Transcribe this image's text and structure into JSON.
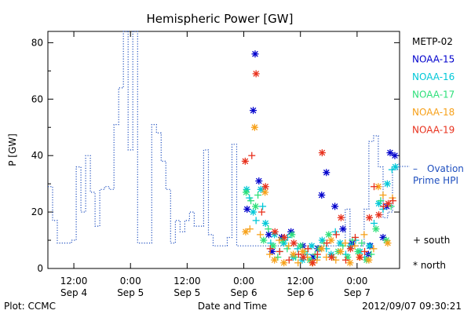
{
  "chart_data": {
    "type": "scatter",
    "title": "Hemispheric Power [GW]",
    "ylabel": "P [GW]",
    "xlabel": "Date and Time",
    "ylim": [
      0,
      84
    ],
    "yticks": [
      0,
      20,
      40,
      60,
      80
    ],
    "x_unit": "hours from 2012-09-04 00:00 UTC",
    "xlim": [
      6.5,
      81
    ],
    "xticks": [
      {
        "x": 12,
        "time": "12:00",
        "date": "Sep 4"
      },
      {
        "x": 24,
        "time": "0:00",
        "date": "Sep 5"
      },
      {
        "x": 36,
        "time": "12:00",
        "date": "Sep 5"
      },
      {
        "x": 48,
        "time": "0:00",
        "date": "Sep 6"
      },
      {
        "x": 60,
        "time": "12:00",
        "date": "Sep 6"
      },
      {
        "x": 72,
        "time": "0:00",
        "date": "Sep 7"
      }
    ],
    "ovation": {
      "name_line1": "Ovation",
      "name_line2": "Prime HPI",
      "color": "#1f4fbf",
      "x": [
        6.5,
        7.5,
        8.5,
        9.5,
        10.5,
        11.5,
        12.5,
        13.5,
        14.5,
        15.5,
        16.5,
        17.5,
        18.5,
        19.5,
        20.5,
        21.5,
        22.5,
        23.5,
        24.5,
        25.5,
        26.5,
        27.5,
        28.5,
        29.5,
        30.5,
        31.5,
        32.5,
        33.5,
        34.5,
        35.5,
        36.5,
        37.5,
        38.5,
        39.5,
        40.5,
        41.5,
        42.5,
        43.5,
        44.5,
        45.5,
        46.5,
        47.5,
        48.5,
        49.5,
        50.5,
        51.5,
        52.5,
        53.5,
        54.5,
        55.5,
        56.5,
        57.5,
        58.5,
        59.5,
        60.5,
        61.5,
        62.5,
        63.5,
        64.5,
        65.5,
        66.5,
        67.5,
        68.5,
        69.5,
        70.5,
        71.5,
        72.5,
        73.5,
        74.5,
        75.5,
        76.5,
        77.5,
        78.5,
        79.5,
        80.5,
        81
      ],
      "y": [
        29,
        17,
        9,
        9,
        9,
        10,
        36,
        20,
        40,
        27,
        15,
        28,
        29,
        28,
        51,
        64,
        84,
        42,
        84,
        9,
        9,
        9,
        51,
        48,
        38,
        28,
        9,
        17,
        13,
        17,
        20,
        15,
        15,
        42,
        12,
        8,
        8,
        8,
        11,
        44,
        8,
        8,
        8,
        8,
        8,
        8,
        8,
        8,
        8,
        8,
        8,
        8,
        8,
        8,
        8,
        8,
        8,
        8,
        8,
        8,
        8,
        8,
        8,
        21,
        8,
        8,
        8,
        21,
        45,
        47,
        36,
        18,
        20,
        35,
        37,
        35
      ]
    },
    "series": [
      {
        "name": "METP-02",
        "color": "#000000",
        "marker": "+",
        "x": [],
        "y": []
      },
      {
        "name": "NOAA-15",
        "color": "#0000cc",
        "marker": "*",
        "x": [
          48.7,
          50.0,
          50.4,
          51.2,
          53.3,
          54.0,
          56.0,
          58.0,
          60.5,
          62.7,
          63.7,
          64.5,
          65.5,
          67.3,
          69.0,
          71.0,
          74.4,
          74.8,
          77.5,
          78.3,
          79.0,
          80.0
        ],
        "y": [
          21,
          56,
          76,
          31,
          12,
          6,
          11,
          13,
          8,
          4,
          7,
          26,
          34,
          22,
          14,
          9,
          5,
          8,
          11,
          22,
          41,
          40
        ]
      },
      {
        "name": "NOAA-16",
        "color": "#00c8d8",
        "marker": "*+",
        "x": [
          48.6,
          49.2,
          50.0,
          50.6,
          51.6,
          52.0,
          52.6,
          53.7,
          54.5,
          55.6,
          56.5,
          57.3,
          58.5,
          59.4,
          60.4,
          61.4,
          62.4,
          63.6,
          64.6,
          65.5,
          66.5,
          67.4,
          68.4,
          69.6,
          70.6,
          71.7,
          72.6,
          73.6,
          74.6,
          75.6,
          76.6,
          77.5,
          78.4,
          79.4,
          80.1
        ],
        "y": [
          28,
          25,
          20,
          17,
          28,
          22,
          16,
          9,
          12,
          6,
          9,
          11,
          4,
          7,
          3,
          5,
          8,
          4,
          10,
          7,
          5,
          13,
          9,
          5,
          8,
          10,
          6,
          4,
          8,
          16,
          23,
          21,
          30,
          35,
          36
        ]
      },
      {
        "name": "NOAA-17",
        "color": "#2ee07a",
        "marker": "*+",
        "x": [
          48.5,
          49.5,
          50.5,
          51.0,
          52.2,
          53.2,
          54.2,
          55.2,
          56.2,
          57.2,
          58.2,
          59.0,
          60.0,
          61.0,
          62.0,
          63.1,
          64.0,
          65.0,
          66.0,
          67.0,
          68.0,
          69.0,
          70.0,
          71.0,
          72.2,
          73.0,
          74.0,
          75.0,
          76.0,
          77.0,
          78.2,
          79.2
        ],
        "y": [
          27,
          24,
          22,
          26,
          10,
          14,
          8,
          4,
          10,
          7,
          12,
          4,
          8,
          6,
          3,
          5,
          7,
          9,
          12,
          4,
          6,
          8,
          4,
          10,
          6,
          9,
          3,
          5,
          14,
          24,
          10,
          22
        ]
      },
      {
        "name": "NOAA-18",
        "color": "#f7a11a",
        "marker": "*+",
        "x": [
          48.4,
          49.3,
          50.3,
          51.5,
          52.5,
          53.5,
          54.5,
          55.5,
          56.5,
          57.5,
          58.5,
          59.5,
          60.5,
          61.5,
          62.5,
          63.5,
          64.5,
          65.5,
          66.5,
          67.5,
          68.5,
          69.5,
          70.5,
          71.5,
          72.5,
          73.5,
          74.5,
          75.5,
          76.5,
          77.5,
          78.5,
          79.5
        ],
        "y": [
          13,
          14,
          50,
          12,
          27,
          5,
          3,
          10,
          2,
          8,
          5,
          2,
          6,
          4,
          2,
          3,
          7,
          4,
          10,
          3,
          6,
          9,
          2,
          8,
          4,
          12,
          3,
          7,
          29,
          26,
          9,
          25
        ]
      },
      {
        "name": "NOAA-19",
        "color": "#e8321e",
        "marker": "*+",
        "x": [
          48.3,
          49.7,
          50.6,
          51.8,
          52.6,
          53.6,
          54.6,
          55.6,
          56.6,
          57.6,
          58.6,
          59.6,
          60.6,
          61.6,
          62.6,
          63.6,
          64.6,
          65.6,
          66.6,
          67.6,
          68.6,
          69.6,
          70.6,
          71.6,
          72.6,
          73.6,
          74.6,
          75.6,
          76.6,
          77.6,
          78.6,
          79.6
        ],
        "y": [
          38,
          40,
          69,
          20,
          29,
          7,
          13,
          6,
          11,
          3,
          9,
          5,
          4,
          7,
          2,
          5,
          41,
          9,
          4,
          12,
          18,
          3,
          7,
          11,
          4,
          6,
          18,
          29,
          19,
          22,
          23,
          24
        ]
      }
    ],
    "legend_hint": {
      "plus": "+ south",
      "star": "* north"
    },
    "footer_left": "Plot: CCMC",
    "footer_right": "2012/09/07 09:30:21"
  }
}
